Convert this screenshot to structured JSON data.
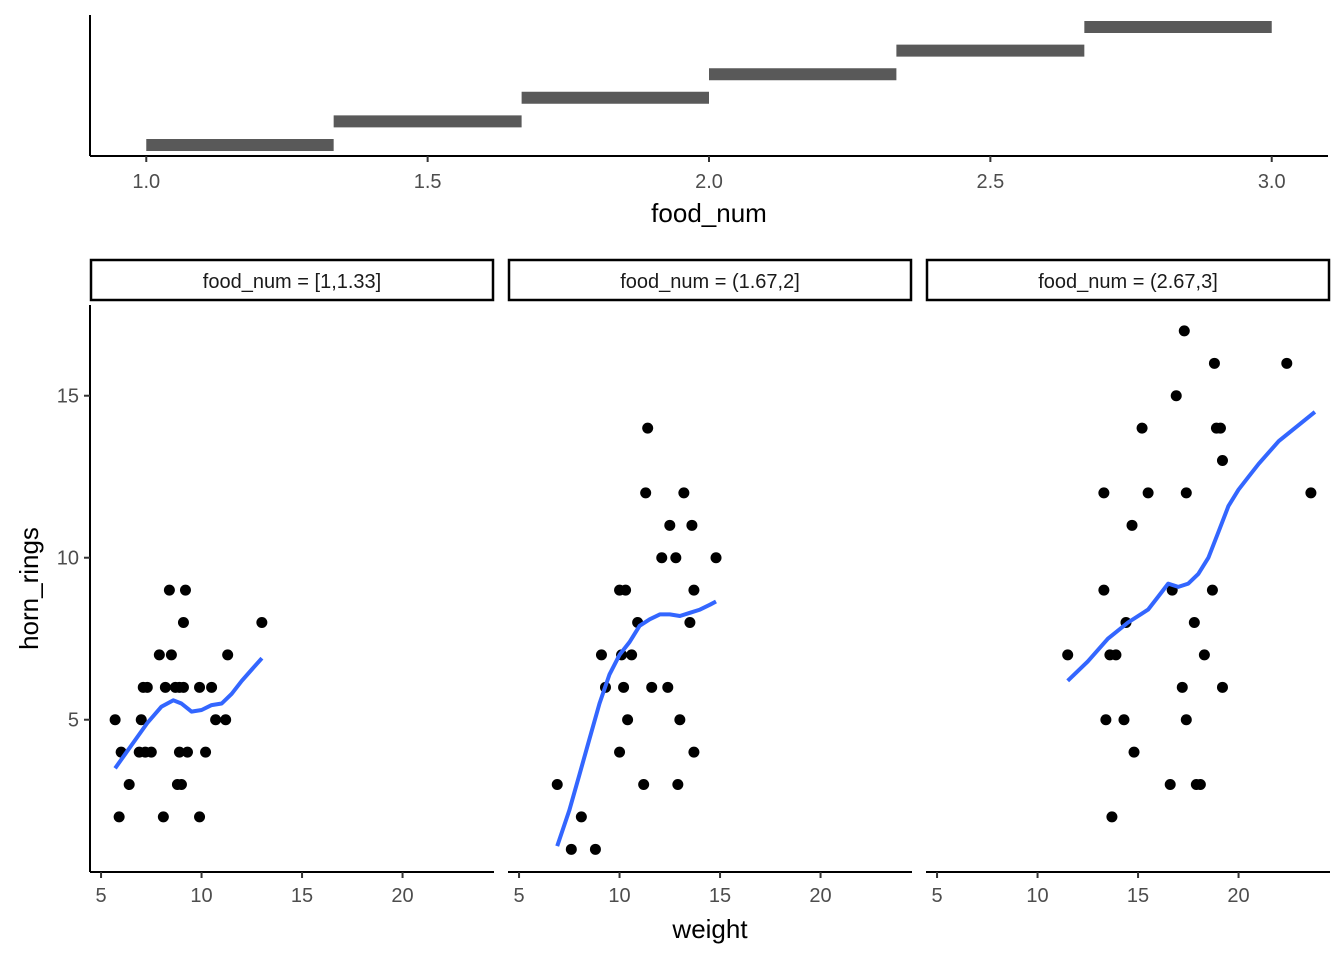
{
  "chart_data": [
    {
      "type": "bar",
      "xlabel": "food_num",
      "ylabel": "",
      "xlim": [
        0.9,
        3.1
      ],
      "x_ticks": [
        "1.0",
        "1.5",
        "2.0",
        "2.5",
        "3.0"
      ],
      "x_tick_values": [
        1.0,
        1.5,
        2.0,
        2.5,
        3.0
      ],
      "bar_color": "#595959",
      "intervals": [
        {
          "start": 1.0,
          "end": 1.333
        },
        {
          "start": 1.333,
          "end": 1.667
        },
        {
          "start": 1.667,
          "end": 2.0
        },
        {
          "start": 2.0,
          "end": 2.333
        },
        {
          "start": 2.333,
          "end": 2.667
        },
        {
          "start": 2.667,
          "end": 3.0
        }
      ]
    },
    {
      "type": "scatter",
      "xlabel": "weight",
      "ylabel": "horn_rings",
      "xlim": [
        4.5,
        24.5
      ],
      "ylim": [
        0.3,
        17.8
      ],
      "x_ticks": [
        "5",
        "10",
        "15",
        "20"
      ],
      "x_tick_values": [
        5,
        10,
        15,
        20
      ],
      "y_ticks": [
        "5",
        "10",
        "15"
      ],
      "y_tick_values": [
        5,
        10,
        15
      ],
      "point_color": "#000000",
      "smooth_color": "#3366ff",
      "panels": [
        {
          "strip": "food_num = [1,1.33]",
          "points": [
            [
              5.7,
              5
            ],
            [
              5.9,
              2
            ],
            [
              6.0,
              4
            ],
            [
              6.4,
              3
            ],
            [
              6.9,
              4
            ],
            [
              7.0,
              5
            ],
            [
              7.1,
              6
            ],
            [
              7.2,
              4
            ],
            [
              7.3,
              6
            ],
            [
              7.5,
              4
            ],
            [
              7.9,
              7
            ],
            [
              8.1,
              2
            ],
            [
              8.2,
              6
            ],
            [
              8.4,
              9
            ],
            [
              8.5,
              7
            ],
            [
              8.7,
              6
            ],
            [
              8.8,
              3
            ],
            [
              8.9,
              4
            ],
            [
              8.9,
              6
            ],
            [
              9.0,
              3
            ],
            [
              9.1,
              8
            ],
            [
              9.1,
              6
            ],
            [
              9.2,
              9
            ],
            [
              9.3,
              4
            ],
            [
              9.9,
              6
            ],
            [
              9.9,
              2
            ],
            [
              10.2,
              4
            ],
            [
              10.5,
              6
            ],
            [
              10.7,
              5
            ],
            [
              11.2,
              5
            ],
            [
              11.3,
              7
            ],
            [
              13.0,
              8
            ]
          ],
          "smooth": [
            [
              5.7,
              3.5
            ],
            [
              6.5,
              4.2
            ],
            [
              7.3,
              4.9
            ],
            [
              8.0,
              5.4
            ],
            [
              8.6,
              5.6
            ],
            [
              9.0,
              5.5
            ],
            [
              9.5,
              5.25
            ],
            [
              10.0,
              5.3
            ],
            [
              10.5,
              5.45
            ],
            [
              11.0,
              5.5
            ],
            [
              11.5,
              5.8
            ],
            [
              12.0,
              6.2
            ],
            [
              12.5,
              6.55
            ],
            [
              13.0,
              6.9
            ]
          ]
        },
        {
          "strip": "food_num = (1.67,2]",
          "points": [
            [
              6.9,
              3
            ],
            [
              7.6,
              1
            ],
            [
              8.1,
              2
            ],
            [
              8.8,
              1
            ],
            [
              9.1,
              7
            ],
            [
              9.3,
              6
            ],
            [
              10.0,
              4
            ],
            [
              10.0,
              9
            ],
            [
              10.1,
              7
            ],
            [
              10.2,
              6
            ],
            [
              10.3,
              9
            ],
            [
              10.4,
              5
            ],
            [
              10.6,
              7
            ],
            [
              10.9,
              8
            ],
            [
              11.2,
              3
            ],
            [
              11.3,
              12
            ],
            [
              11.4,
              14
            ],
            [
              11.6,
              6
            ],
            [
              12.1,
              10
            ],
            [
              12.4,
              6
            ],
            [
              12.5,
              11
            ],
            [
              12.8,
              10
            ],
            [
              12.9,
              3
            ],
            [
              13.0,
              5
            ],
            [
              13.2,
              12
            ],
            [
              13.5,
              8
            ],
            [
              13.6,
              11
            ],
            [
              13.7,
              4
            ],
            [
              13.7,
              9
            ],
            [
              14.8,
              10
            ]
          ],
          "smooth": [
            [
              6.9,
              1.1
            ],
            [
              7.5,
              2.2
            ],
            [
              8.0,
              3.3
            ],
            [
              8.5,
              4.4
            ],
            [
              9.0,
              5.5
            ],
            [
              9.5,
              6.4
            ],
            [
              10.0,
              7.0
            ],
            [
              10.5,
              7.4
            ],
            [
              11.0,
              7.9
            ],
            [
              11.5,
              8.1
            ],
            [
              12.0,
              8.25
            ],
            [
              12.5,
              8.25
            ],
            [
              13.0,
              8.2
            ],
            [
              13.5,
              8.3
            ],
            [
              14.0,
              8.4
            ],
            [
              14.5,
              8.55
            ],
            [
              14.8,
              8.65
            ]
          ]
        },
        {
          "strip": "food_num = (2.67,3]",
          "points": [
            [
              11.5,
              7
            ],
            [
              13.3,
              12
            ],
            [
              13.3,
              9
            ],
            [
              13.4,
              5
            ],
            [
              13.6,
              7
            ],
            [
              13.7,
              2
            ],
            [
              13.9,
              7
            ],
            [
              14.3,
              5
            ],
            [
              14.4,
              8
            ],
            [
              14.7,
              11
            ],
            [
              14.8,
              4
            ],
            [
              15.2,
              14
            ],
            [
              15.5,
              12
            ],
            [
              16.6,
              3
            ],
            [
              16.7,
              9
            ],
            [
              16.9,
              15
            ],
            [
              17.2,
              6
            ],
            [
              17.3,
              17
            ],
            [
              17.4,
              12
            ],
            [
              17.4,
              5
            ],
            [
              17.8,
              8
            ],
            [
              17.9,
              3
            ],
            [
              18.1,
              3
            ],
            [
              18.3,
              7
            ],
            [
              18.7,
              9
            ],
            [
              18.8,
              16
            ],
            [
              18.9,
              14
            ],
            [
              19.1,
              14
            ],
            [
              19.2,
              13
            ],
            [
              19.2,
              6
            ],
            [
              22.4,
              16
            ],
            [
              23.6,
              12
            ]
          ],
          "smooth": [
            [
              11.5,
              6.2
            ],
            [
              12.5,
              6.8
            ],
            [
              13.5,
              7.5
            ],
            [
              14.5,
              8.0
            ],
            [
              15.5,
              8.4
            ],
            [
              16.0,
              8.8
            ],
            [
              16.5,
              9.2
            ],
            [
              17.0,
              9.1
            ],
            [
              17.5,
              9.2
            ],
            [
              18.0,
              9.5
            ],
            [
              18.5,
              10.0
            ],
            [
              19.0,
              10.8
            ],
            [
              19.5,
              11.6
            ],
            [
              20.0,
              12.1
            ],
            [
              20.5,
              12.5
            ],
            [
              21.0,
              12.9
            ],
            [
              22.0,
              13.6
            ],
            [
              23.0,
              14.1
            ],
            [
              23.8,
              14.5
            ]
          ]
        }
      ]
    }
  ]
}
